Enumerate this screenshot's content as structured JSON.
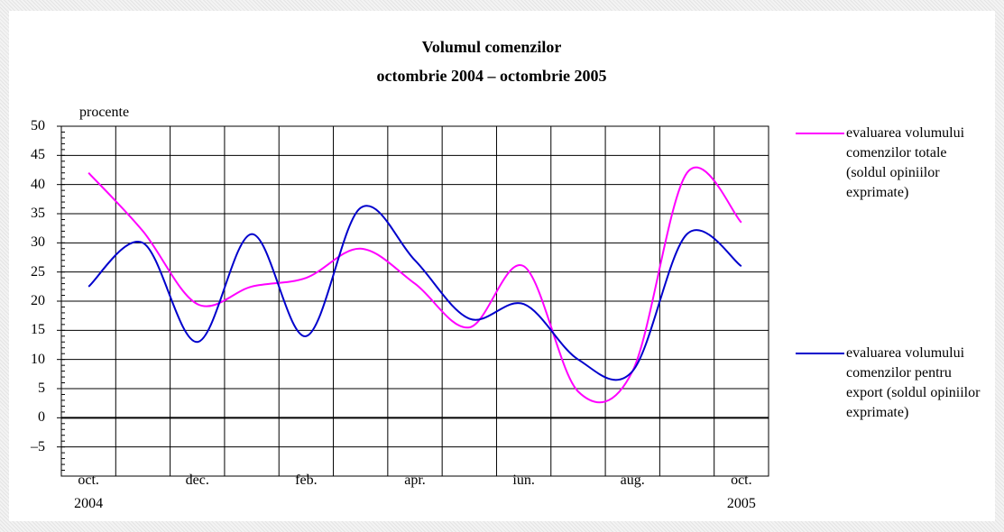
{
  "chart_data": {
    "type": "line",
    "title": "Volumul comenzilor\noctombrie 2004 – octombrie 2005",
    "y_label": "procente",
    "categories": [
      "oct.\n2004",
      null,
      "dec.",
      null,
      "feb.",
      null,
      "apr.",
      null,
      "iun.",
      null,
      "aug.",
      null,
      "oct.\n2005"
    ],
    "series": [
      {
        "name": "evaluarea volumului comenzilor totale (soldul opiniilor exprimate)",
        "color": "#ff00ff",
        "values": [
          42,
          32,
          19.5,
          22.5,
          24,
          29,
          23,
          15.5,
          26,
          4.5,
          8,
          42,
          33.5
        ]
      },
      {
        "name": "evaluarea volumului comenzilor pentru export (soldul opiniilor exprimate)",
        "color": "#0000cc",
        "values": [
          22.5,
          30,
          13,
          31.5,
          14,
          36,
          27,
          17,
          19.5,
          10,
          8,
          31.5,
          26
        ]
      }
    ],
    "ylim": [
      -10,
      50
    ],
    "yticks": [
      {
        "value": -5,
        "label": "–5"
      },
      0,
      5,
      10,
      15,
      20,
      25,
      30,
      35,
      40,
      45,
      50
    ],
    "grid": true
  }
}
